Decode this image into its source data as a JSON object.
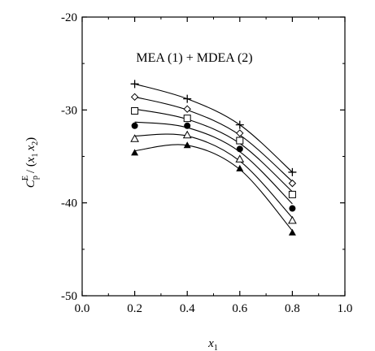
{
  "chart_data": {
    "type": "scatter",
    "annotation": "MEA (1) + MDEA (2)",
    "xlabel": {
      "main": "x",
      "sub": "1"
    },
    "ylabel": {
      "c": "C",
      "c_sub": "p",
      "c_sup": "E",
      "paren_open": "/ (",
      "x1": "x",
      "x1_sub": "1",
      "x2": "x",
      "x2_sub": "2",
      "paren_close": ")"
    },
    "xlim": [
      0.0,
      1.0
    ],
    "ylim": [
      -50,
      -20
    ],
    "x_ticks": [
      0.0,
      0.2,
      0.4,
      0.6,
      0.8,
      1.0
    ],
    "x_tick_labels": [
      "0.0",
      "0.2",
      "0.4",
      "0.6",
      "0.8",
      "1.0"
    ],
    "y_ticks": [
      -50,
      -40,
      -30,
      -20
    ],
    "y_tick_labels": [
      "-50",
      "-40",
      "-30",
      "-20"
    ],
    "grid": false,
    "x": [
      0.2,
      0.4,
      0.6,
      0.8
    ],
    "series": [
      {
        "marker": "plus",
        "values": [
          -27.2,
          -28.8,
          -31.6,
          -36.7
        ],
        "fit": [
          -27.2,
          -28.8,
          -31.6,
          -36.7
        ]
      },
      {
        "marker": "diamond-open",
        "values": [
          -28.6,
          -29.9,
          -32.5,
          -37.9
        ],
        "fit": [
          -28.6,
          -30.0,
          -32.7,
          -37.7
        ]
      },
      {
        "marker": "square-open",
        "values": [
          -30.1,
          -30.9,
          -33.3,
          -39.1
        ],
        "fit": [
          -29.9,
          -31.0,
          -33.6,
          -38.8
        ]
      },
      {
        "marker": "circle-filled",
        "values": [
          -31.7,
          -31.7,
          -34.2,
          -40.6
        ],
        "fit": [
          -31.3,
          -31.9,
          -34.5,
          -40.1
        ]
      },
      {
        "marker": "triangle-open",
        "values": [
          -33.1,
          -32.7,
          -35.3,
          -41.9
        ],
        "fit": [
          -32.8,
          -32.8,
          -35.5,
          -41.6
        ]
      },
      {
        "marker": "triangle-filled",
        "values": [
          -34.6,
          -33.8,
          -36.3,
          -43.2
        ],
        "fit": [
          -34.4,
          -33.8,
          -36.4,
          -43.0
        ]
      }
    ]
  }
}
